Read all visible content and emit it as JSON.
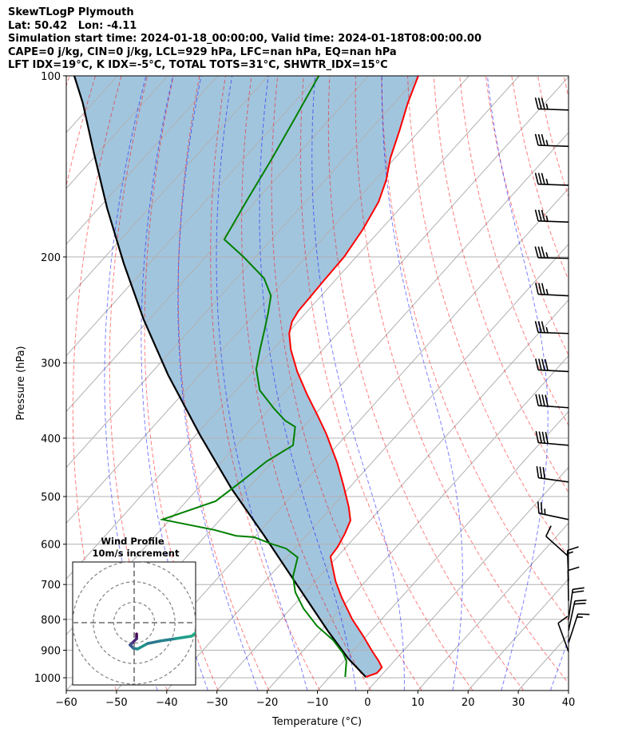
{
  "title": {
    "line1": "SkewTLogP Plymouth",
    "line2": "Lat: 50.42   Lon: -4.11",
    "line3": "Simulation start time: 2024-01-18_00:00:00, Valid time: 2024-01-18T08:00:00.00",
    "line4": "CAPE=0 j/kg, CIN=0 j/kg, LCL=929 hPa, LFC=nan hPa, EQ=nan hPa",
    "line5": "LFT IDX=19°C, K IDX=-5°C, TOTAL TOTS=31°C, SHWTR_IDX=15°C"
  },
  "colors": {
    "temperature": "#ff0000",
    "dewpoint": "#008000",
    "parcel": "#000000",
    "cape_fill": "#a2c5de",
    "dry_adiabat": "#ff0000",
    "moist_adiabat": "#0000ff",
    "grid": "#b0b0b0"
  },
  "chart_data": {
    "type": "line",
    "title": "SkewTLogP Plymouth",
    "xlabel": "Temperature (°C)",
    "ylabel": "Pressure (hPa)",
    "xlim": [
      -60,
      40
    ],
    "ylim": [
      1050,
      100
    ],
    "xticks": [
      "−60",
      "−50",
      "−40",
      "−30",
      "−20",
      "−10",
      "0",
      "10",
      "20",
      "30",
      "40"
    ],
    "xtick_values": [
      -60,
      -50,
      -40,
      -30,
      -20,
      -10,
      0,
      10,
      20,
      30,
      40
    ],
    "yticks": [
      "100",
      "200",
      "300",
      "400",
      "500",
      "600",
      "700",
      "800",
      "900",
      "1000"
    ],
    "ytick_values": [
      100,
      200,
      300,
      400,
      500,
      600,
      700,
      800,
      900,
      1000
    ],
    "grid": true,
    "series": [
      {
        "name": "temperature",
        "p": [
          997,
          982,
          961,
          938,
          904,
          853,
          800,
          735,
          691,
          629,
          606,
          575,
          548,
          520,
          479,
          440,
          393,
          366,
          338,
          310,
          285,
          268,
          256,
          246,
          232,
          218,
          200,
          180,
          162,
          149,
          137,
          123,
          111,
          100
        ],
        "t": [
          -2.8,
          -1.3,
          -1.3,
          -3.1,
          -6.1,
          -10.6,
          -15.8,
          -21.9,
          -26.0,
          -31.4,
          -31.7,
          -32.7,
          -33.9,
          -36.7,
          -41.6,
          -46.8,
          -54.3,
          -59.4,
          -65.2,
          -71.2,
          -76.4,
          -79.6,
          -81.2,
          -81.8,
          -82.0,
          -82.2,
          -82.4,
          -83.6,
          -85.4,
          -87.8,
          -90.9,
          -94.1,
          -97.3,
          -100.1
        ]
      },
      {
        "name": "dewpoint",
        "p": [
          997,
          938,
          910,
          866,
          820,
          767,
          721,
          679,
          631,
          610,
          599,
          584,
          581,
          568,
          546,
          509,
          470,
          437,
          411,
          383,
          374,
          357,
          333,
          307,
          283,
          264,
          247,
          232,
          217,
          200,
          187,
          161,
          138,
          118,
          100
        ],
        "t": [
          -6.9,
          -9.5,
          -11.6,
          -15.9,
          -21.7,
          -27.5,
          -32.0,
          -35.3,
          -37.8,
          -41.7,
          -45.5,
          -50.1,
          -53.9,
          -59.3,
          -71.5,
          -64.2,
          -62.5,
          -61.2,
          -58.8,
          -61.7,
          -64.8,
          -69.2,
          -75.3,
          -79.8,
          -82.8,
          -85.2,
          -87.6,
          -90.0,
          -94.5,
          -102.4,
          -109.4,
          -111.9,
          -114.3,
          -117.0,
          -119.9
        ]
      },
      {
        "name": "parcel",
        "p": [
          997,
          929,
          835,
          695,
          579,
          485,
          395,
          314,
          254,
          205,
          166,
          134,
          111,
          100
        ],
        "t": [
          -2.8,
          -9.6,
          -18.7,
          -33.7,
          -48.6,
          -63.3,
          -79.2,
          -96.3,
          -111.1,
          -125.1,
          -138.3,
          -151.0,
          -162.0,
          -168.6
        ]
      }
    ],
    "dry_adiabats_theta_K": [
      200,
      210,
      220,
      230,
      240,
      250,
      260,
      270,
      280,
      290,
      300,
      310,
      320,
      330,
      340,
      350,
      360,
      370,
      380,
      390,
      400,
      420,
      440,
      460
    ],
    "moist_adiabats_T1000_C": [
      -45,
      -35,
      -25,
      -15,
      -5,
      5,
      15,
      25,
      35
    ],
    "wind_barbs": [
      {
        "p": 114,
        "dir": 272,
        "kt": 35
      },
      {
        "p": 131,
        "dir": 272,
        "kt": 35
      },
      {
        "p": 152,
        "dir": 272,
        "kt": 35
      },
      {
        "p": 175,
        "dir": 272,
        "kt": 35
      },
      {
        "p": 201,
        "dir": 271,
        "kt": 35
      },
      {
        "p": 232,
        "dir": 273,
        "kt": 35
      },
      {
        "p": 268,
        "dir": 272,
        "kt": 35
      },
      {
        "p": 310,
        "dir": 273,
        "kt": 40
      },
      {
        "p": 356,
        "dir": 274,
        "kt": 40
      },
      {
        "p": 411,
        "dir": 275,
        "kt": 40
      },
      {
        "p": 473,
        "dir": 278,
        "kt": 30
      },
      {
        "p": 546,
        "dir": 282,
        "kt": 25
      },
      {
        "p": 629,
        "dir": 312,
        "kt": 10
      },
      {
        "p": 690,
        "dir": 358,
        "kt": 15
      },
      {
        "p": 745,
        "dir": 359,
        "kt": 10
      },
      {
        "p": 800,
        "dir": 8,
        "kt": 20
      },
      {
        "p": 835,
        "dir": 12,
        "kt": 20
      },
      {
        "p": 875,
        "dir": 18,
        "kt": 15
      },
      {
        "p": 905,
        "dir": 340,
        "kt": 10
      }
    ],
    "hodograph": {
      "title": "Wind Profile",
      "subtitle": "10m/s increment",
      "rings_ms": [
        10,
        20,
        30
      ],
      "u": [
        1.2,
        1.2,
        -1.2,
        -2.0,
        -0.4,
        1.6,
        6.6,
        12.5,
        20.3,
        28.1,
        30.0
      ],
      "v": [
        -5.5,
        -7.8,
        -10.2,
        -10.9,
        -12.5,
        -12.9,
        -10.2,
        -9.0,
        -7.8,
        -6.6,
        -5.1
      ]
    }
  }
}
